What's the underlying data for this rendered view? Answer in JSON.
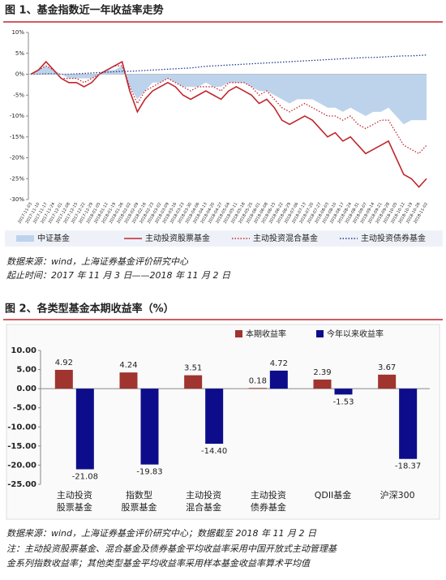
{
  "chart_data": [
    {
      "type": "line",
      "title": "图 1、基金指数近一年收益率走势",
      "x": [
        "2017-11-03",
        "2017-11-10",
        "2017-11-17",
        "2017-11-24",
        "2017-12-01",
        "2017-12-08",
        "2017-12-15",
        "2017-12-22",
        "2017-12-29",
        "2018-01-05",
        "2018-01-12",
        "2018-01-19",
        "2018-01-26",
        "2018-02-02",
        "2018-02-09",
        "2018-02-16",
        "2018-02-23",
        "2018-03-02",
        "2018-03-09",
        "2018-03-16",
        "2018-03-23",
        "2018-03-30",
        "2018-04-06",
        "2018-04-13",
        "2018-04-20",
        "2018-04-27",
        "2018-05-04",
        "2018-05-11",
        "2018-05-18",
        "2018-05-25",
        "2018-06-01",
        "2018-06-08",
        "2018-06-15",
        "2018-06-22",
        "2018-06-29",
        "2018-07-06",
        "2018-07-13",
        "2018-07-20",
        "2018-07-27",
        "2018-08-03",
        "2018-08-10",
        "2018-08-17",
        "2018-08-24",
        "2018-08-31",
        "2018-09-07",
        "2018-09-14",
        "2018-09-21",
        "2018-09-28",
        "2018-10-05",
        "2018-10-12",
        "2018-10-19",
        "2018-10-26",
        "2018-11-02"
      ],
      "series": [
        {
          "name": "中证基金",
          "style": "area",
          "color": "#bdd3ec",
          "values": [
            0,
            1,
            2,
            1,
            0,
            -1,
            -1,
            -1,
            -1,
            0,
            1,
            1,
            2,
            -3,
            -6,
            -4,
            -2,
            -2,
            -1,
            -2,
            -3,
            -3,
            -3,
            -2,
            -3,
            -3,
            -2,
            -2,
            -2,
            -3,
            -4,
            -4,
            -5,
            -6,
            -7,
            -6,
            -6,
            -6,
            -7,
            -8,
            -8,
            -9,
            -8,
            -9,
            -10,
            -9,
            -9,
            -8,
            -10,
            -12,
            -11,
            -11,
            -11
          ]
        },
        {
          "name": "主动投资股票基金",
          "style": "solid",
          "color": "#c0272d",
          "values": [
            0,
            1,
            3,
            1,
            -1,
            -2,
            -2,
            -3,
            -2,
            0,
            1,
            2,
            3,
            -4,
            -9,
            -6,
            -4,
            -3,
            -2,
            -3,
            -5,
            -6,
            -5,
            -4,
            -5,
            -6,
            -4,
            -3,
            -4,
            -5,
            -7,
            -6,
            -8,
            -11,
            -12,
            -11,
            -10,
            -11,
            -13,
            -15,
            -14,
            -16,
            -15,
            -17,
            -19,
            -18,
            -17,
            -16,
            -20,
            -24,
            -25,
            -27,
            -25
          ]
        },
        {
          "name": "主动投资混合基金",
          "style": "dotted",
          "color": "#c0272d",
          "values": [
            0,
            1,
            2,
            1,
            -1,
            -1,
            -1,
            -2,
            -1,
            0,
            1,
            2,
            2,
            -3,
            -7,
            -4,
            -3,
            -2,
            -1,
            -2,
            -3,
            -4,
            -3,
            -3,
            -3,
            -4,
            -2,
            -2,
            -2,
            -3,
            -5,
            -4,
            -6,
            -8,
            -9,
            -8,
            -7,
            -8,
            -9,
            -10,
            -10,
            -11,
            -10,
            -12,
            -13,
            -12,
            -11,
            -11,
            -14,
            -17,
            -18,
            -19,
            -17
          ]
        },
        {
          "name": "主动投资债券基金",
          "style": "dotted",
          "color": "#1f3c8c",
          "values": [
            0,
            0,
            0.1,
            0.1,
            0,
            0,
            0.1,
            0.2,
            0.3,
            0.4,
            0.5,
            0.6,
            0.7,
            0.7,
            0.8,
            0.9,
            1,
            1.1,
            1.2,
            1.3,
            1.4,
            1.5,
            1.7,
            1.9,
            2,
            2.1,
            2.2,
            2.3,
            2.4,
            2.5,
            2.6,
            2.7,
            2.8,
            2.9,
            3,
            3.1,
            3.2,
            3.3,
            3.4,
            3.5,
            3.6,
            3.7,
            3.8,
            3.9,
            4,
            4,
            4.1,
            4.2,
            4.3,
            4.4,
            4.4,
            4.5,
            4.6
          ]
        }
      ],
      "ylim": [
        -30,
        10
      ],
      "yticks": [
        {
          "value": -30,
          "label": "-30%"
        },
        {
          "value": -25,
          "label": "-25%"
        },
        {
          "value": -20,
          "label": "-20%"
        },
        {
          "value": -15,
          "label": "-15%"
        },
        {
          "value": -10,
          "label": "-10%"
        },
        {
          "value": -5,
          "label": "-5%"
        },
        {
          "value": 0,
          "label": "0%"
        },
        {
          "value": 5,
          "label": "5%"
        },
        {
          "value": 10,
          "label": "10%"
        }
      ]
    },
    {
      "type": "bar",
      "title": "图 2、各类型基金本期收益率（%）",
      "categories": [
        [
          "主动投资",
          "股票基金"
        ],
        [
          "指数型",
          "股票基金"
        ],
        [
          "主动投资",
          "混合基金"
        ],
        [
          "主动投资",
          "债券基金"
        ],
        [
          "QDII基金"
        ],
        [
          "沪深300"
        ]
      ],
      "series": [
        {
          "name": "本期收益率",
          "color": "#a0342f",
          "values": [
            4.92,
            4.24,
            3.51,
            0.18,
            2.39,
            3.67
          ],
          "value_labels": [
            "4.92",
            "4.24",
            "3.51",
            "0.18",
            "2.39",
            "3.67"
          ]
        },
        {
          "name": "今年以来收益率",
          "color": "#0d0d8c",
          "values": [
            -21.08,
            -19.83,
            -14.4,
            4.72,
            -1.53,
            -18.37
          ],
          "value_labels": [
            "-21.08",
            "-19.83",
            "-14.40",
            "4.72",
            "-1.53",
            "-18.37"
          ]
        }
      ],
      "ylim": [
        -25,
        10
      ],
      "yticks": [
        {
          "value": -25,
          "label": "-25.00"
        },
        {
          "value": -20,
          "label": "-20.00"
        },
        {
          "value": -15,
          "label": "-15.00"
        },
        {
          "value": -10,
          "label": "-10.00"
        },
        {
          "value": -5,
          "label": "-5.00"
        },
        {
          "value": 0,
          "label": "0.00"
        },
        {
          "value": 5,
          "label": "5.00"
        },
        {
          "value": 10,
          "label": "10.00"
        }
      ]
    }
  ],
  "notes": [
    "数据来源：wind，上海证券基金评价研究中心",
    "起止时间：2017 年 11 月 3 日——2018 年 11 月 2 日",
    "数据来源：wind，上海证券基金评价研究中心；数据截至 2018 年 11 月 2 日",
    "注：主动投资股票基金、混合基金及债券基金平均收益率采用中国开放式主动管理基",
    "金系列指数收益率；其他类型基金平均收益率采用样本基金收益率算术平均值"
  ]
}
